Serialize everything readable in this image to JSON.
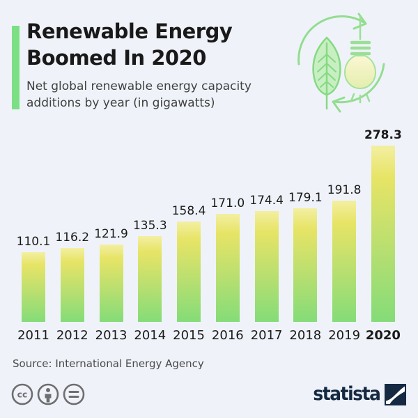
{
  "header": {
    "title_line1": "Renewable Energy",
    "title_line2": "Boomed In 2020",
    "subtitle_line1": "Net global renewable energy capacity",
    "subtitle_line2": "additions by year (in gigawatts)",
    "topic_icon": "leaf-lightbulb-recycle-icon"
  },
  "chart_data": {
    "type": "bar",
    "categories": [
      "2011",
      "2012",
      "2013",
      "2014",
      "2015",
      "2016",
      "2017",
      "2018",
      "2019",
      "2020"
    ],
    "values": [
      110.1,
      116.2,
      121.9,
      135.3,
      158.4,
      171.0,
      174.4,
      179.1,
      191.8,
      278.3
    ],
    "labels": [
      "110.1",
      "116.2",
      "121.9",
      "135.3",
      "158.4",
      "171.0",
      "174.4",
      "179.1",
      "191.8",
      "278.3"
    ],
    "title": "Renewable Energy Boomed In 2020",
    "subtitle": "Net global renewable energy capacity additions by year (in gigawatts)",
    "xlabel": "",
    "ylabel": "",
    "unit": "gigawatts",
    "ylim": [
      0,
      278.3
    ],
    "grid": false,
    "legend": "none",
    "highlight_category": "2020",
    "bar_gradient": [
      "#f3efa2",
      "#e7e466",
      "#84dc78"
    ]
  },
  "footer": {
    "source": "Source: International Energy Agency",
    "license_icons": [
      "cc-icon",
      "attribution-icon",
      "equal-icon"
    ],
    "brand": "statista"
  },
  "colors": {
    "background": "#eff3f9",
    "accent_green": "#7bdf83",
    "title_text": "#191919",
    "subtitle_text": "#404040",
    "icon_stroke_green": "#93dd90",
    "license_gray": "#6e6e6e",
    "brand_navy": "#152a42"
  }
}
